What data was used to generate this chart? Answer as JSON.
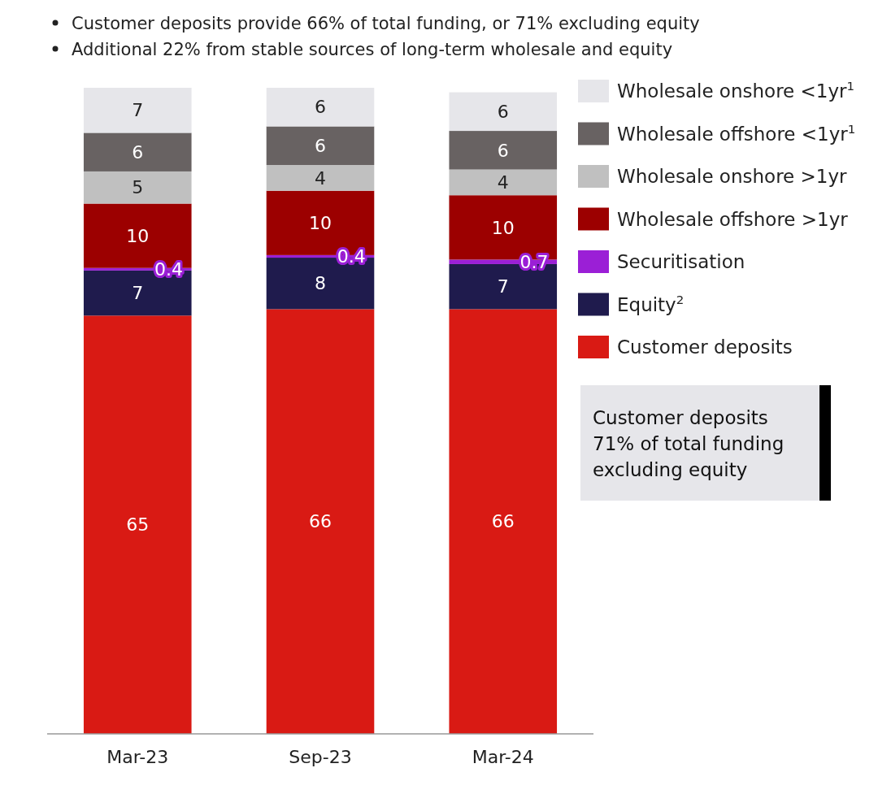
{
  "chart_data": {
    "type": "bar",
    "stacked": true,
    "data_labels": true,
    "legend": "right",
    "categories": [
      "Mar-23",
      "Sep-23",
      "Mar-24"
    ],
    "series": [
      {
        "name": "Customer deposits",
        "color": "#d91a14",
        "values": [
          65,
          66,
          66
        ]
      },
      {
        "name": "Equity$^{2}$",
        "color": "#1f1b4d",
        "values": [
          7,
          8,
          7
        ]
      },
      {
        "name": "Securitisation",
        "color": "#9b1fd6",
        "values": [
          0.4,
          0.4,
          0.7
        ]
      },
      {
        "name": "Wholesale offshore >1yr",
        "color": "#9c0000",
        "values": [
          10,
          10,
          10
        ]
      },
      {
        "name": "Wholesale onshore >1yr",
        "color": "#c0c0c0",
        "values": [
          5,
          4,
          4
        ]
      },
      {
        "name": "Wholesale offshore <1yr$^{1}$",
        "color": "#686262",
        "values": [
          6,
          6,
          6
        ]
      },
      {
        "name": "Wholesale onshore <1yr$^{1}$",
        "color": "#e6e6ea",
        "values": [
          7,
          6,
          6
        ]
      }
    ],
    "annotations": [
      "Customer deposits provide 66% of total funding, or 71% excluding equity",
      "Additional 22% from stable sources of long-term wholesale and equity",
      "Customer deposits 71% of total funding excluding equity"
    ]
  }
}
